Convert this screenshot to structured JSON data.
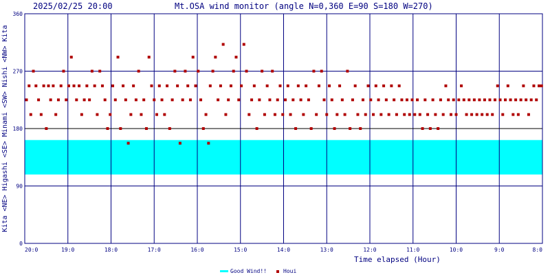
{
  "header": {
    "datetime": "2025/02/25 20:00",
    "title": "Mt.OSA wind monitor (angle N=0,360 E=90 S=180 W=270)"
  },
  "colors": {
    "background": "#ffffff",
    "grid_major": "#000080",
    "grid_minor": "#000000",
    "good_band": "#00ffff",
    "points": "#b00000",
    "text": "#000080"
  },
  "legend": [
    {
      "label": "Good Wind!!",
      "color": "#00ffff",
      "icon": "line-swatch"
    },
    {
      "label": "Houi",
      "color": "#b00000",
      "icon": "square-marker"
    }
  ],
  "chart_data": {
    "type": "scatter",
    "title": "Mt.OSA wind monitor (angle N=0,360 E=90 S=180 W=270)",
    "xlabel": "Time elapsed (Hour)",
    "ylabel": "Kita <NE> Higashi <SE> Minami <SW> Nishi <NW> Kita",
    "y_axis_text_left": [
      "Kita",
      "<NE>",
      "Higashi",
      "<SE>",
      "Minami",
      "<SW>",
      "Nishi",
      "<NW>",
      "Kita"
    ],
    "xlim": [
      0,
      12
    ],
    "ylim": [
      0,
      360
    ],
    "xticks": [
      {
        "x": 0,
        "label": "20:0"
      },
      {
        "x": 1,
        "label": "19:0"
      },
      {
        "x": 2,
        "label": "18:0"
      },
      {
        "x": 3,
        "label": "17:0"
      },
      {
        "x": 4,
        "label": "16:0"
      },
      {
        "x": 5,
        "label": "15:0"
      },
      {
        "x": 6,
        "label": "14:0"
      },
      {
        "x": 7,
        "label": "13:0"
      },
      {
        "x": 8,
        "label": "12:0"
      },
      {
        "x": 9,
        "label": "11:0"
      },
      {
        "x": 10,
        "label": "10:0"
      },
      {
        "x": 11,
        "label": "9:0"
      },
      {
        "x": 12,
        "label": "8:0"
      }
    ],
    "yticks": [
      {
        "y": 0,
        "label": "0"
      },
      {
        "y": 90,
        "label": "90"
      },
      {
        "y": 180,
        "label": "180"
      },
      {
        "y": 270,
        "label": "270"
      },
      {
        "y": 360,
        "label": "360"
      }
    ],
    "grid": true,
    "good_wind_range": [
      108,
      162
    ],
    "series": [
      {
        "name": "Houi",
        "points": [
          [
            0.04,
            225
          ],
          [
            0.1,
            247
          ],
          [
            0.14,
            202
          ],
          [
            0.2,
            270
          ],
          [
            0.26,
            247
          ],
          [
            0.32,
            225
          ],
          [
            0.38,
            202
          ],
          [
            0.44,
            247
          ],
          [
            0.5,
            180
          ],
          [
            0.55,
            247
          ],
          [
            0.6,
            225
          ],
          [
            0.66,
            247
          ],
          [
            0.72,
            202
          ],
          [
            0.78,
            225
          ],
          [
            0.84,
            247
          ],
          [
            0.9,
            270
          ],
          [
            0.96,
            225
          ],
          [
            1.02,
            247
          ],
          [
            1.08,
            292
          ],
          [
            1.14,
            247
          ],
          [
            1.2,
            225
          ],
          [
            1.26,
            247
          ],
          [
            1.32,
            202
          ],
          [
            1.38,
            225
          ],
          [
            1.44,
            247
          ],
          [
            1.5,
            225
          ],
          [
            1.56,
            270
          ],
          [
            1.62,
            247
          ],
          [
            1.68,
            202
          ],
          [
            1.74,
            270
          ],
          [
            1.8,
            247
          ],
          [
            1.86,
            225
          ],
          [
            1.92,
            180
          ],
          [
            1.98,
            202
          ],
          [
            2.04,
            247
          ],
          [
            2.1,
            225
          ],
          [
            2.16,
            292
          ],
          [
            2.22,
            180
          ],
          [
            2.28,
            247
          ],
          [
            2.34,
            225
          ],
          [
            2.4,
            157
          ],
          [
            2.46,
            202
          ],
          [
            2.52,
            247
          ],
          [
            2.58,
            225
          ],
          [
            2.64,
            270
          ],
          [
            2.7,
            202
          ],
          [
            2.76,
            225
          ],
          [
            2.82,
            180
          ],
          [
            2.88,
            292
          ],
          [
            2.94,
            247
          ],
          [
            3.0,
            225
          ],
          [
            3.06,
            202
          ],
          [
            3.12,
            247
          ],
          [
            3.18,
            225
          ],
          [
            3.24,
            202
          ],
          [
            3.3,
            247
          ],
          [
            3.36,
            180
          ],
          [
            3.42,
            225
          ],
          [
            3.48,
            270
          ],
          [
            3.54,
            247
          ],
          [
            3.6,
            157
          ],
          [
            3.66,
            225
          ],
          [
            3.72,
            270
          ],
          [
            3.78,
            247
          ],
          [
            3.84,
            225
          ],
          [
            3.9,
            292
          ],
          [
            3.96,
            247
          ],
          [
            4.02,
            270
          ],
          [
            4.08,
            225
          ],
          [
            4.14,
            180
          ],
          [
            4.2,
            202
          ],
          [
            4.26,
            157
          ],
          [
            4.3,
            247
          ],
          [
            4.36,
            270
          ],
          [
            4.42,
            292
          ],
          [
            4.48,
            225
          ],
          [
            4.54,
            247
          ],
          [
            4.6,
            312
          ],
          [
            4.66,
            202
          ],
          [
            4.72,
            225
          ],
          [
            4.78,
            247
          ],
          [
            4.84,
            270
          ],
          [
            4.9,
            292
          ],
          [
            4.96,
            225
          ],
          [
            5.02,
            247
          ],
          [
            5.08,
            312
          ],
          [
            5.14,
            270
          ],
          [
            5.2,
            202
          ],
          [
            5.26,
            225
          ],
          [
            5.32,
            247
          ],
          [
            5.38,
            180
          ],
          [
            5.44,
            225
          ],
          [
            5.5,
            270
          ],
          [
            5.56,
            202
          ],
          [
            5.62,
            247
          ],
          [
            5.68,
            225
          ],
          [
            5.74,
            270
          ],
          [
            5.8,
            202
          ],
          [
            5.86,
            225
          ],
          [
            5.92,
            247
          ],
          [
            5.98,
            202
          ],
          [
            6.04,
            225
          ],
          [
            6.1,
            247
          ],
          [
            6.16,
            202
          ],
          [
            6.22,
            225
          ],
          [
            6.28,
            180
          ],
          [
            6.34,
            247
          ],
          [
            6.4,
            225
          ],
          [
            6.46,
            202
          ],
          [
            6.52,
            247
          ],
          [
            6.58,
            225
          ],
          [
            6.64,
            180
          ],
          [
            6.7,
            270
          ],
          [
            6.76,
            202
          ],
          [
            6.82,
            247
          ],
          [
            6.88,
            270
          ],
          [
            6.94,
            225
          ],
          [
            7.0,
            202
          ],
          [
            7.06,
            247
          ],
          [
            7.12,
            225
          ],
          [
            7.18,
            180
          ],
          [
            7.24,
            202
          ],
          [
            7.3,
            247
          ],
          [
            7.36,
            225
          ],
          [
            7.42,
            202
          ],
          [
            7.48,
            270
          ],
          [
            7.54,
            180
          ],
          [
            7.6,
            225
          ],
          [
            7.66,
            247
          ],
          [
            7.72,
            202
          ],
          [
            7.78,
            180
          ],
          [
            7.84,
            225
          ],
          [
            7.9,
            202
          ],
          [
            7.96,
            247
          ],
          [
            8.02,
            225
          ],
          [
            8.08,
            202
          ],
          [
            8.14,
            247
          ],
          [
            8.2,
            225
          ],
          [
            8.26,
            202
          ],
          [
            8.32,
            247
          ],
          [
            8.38,
            225
          ],
          [
            8.44,
            202
          ],
          [
            8.5,
            247
          ],
          [
            8.56,
            225
          ],
          [
            8.62,
            202
          ],
          [
            8.68,
            247
          ],
          [
            8.74,
            225
          ],
          [
            8.8,
            202
          ],
          [
            8.86,
            225
          ],
          [
            8.92,
            202
          ],
          [
            8.98,
            225
          ],
          [
            9.04,
            202
          ],
          [
            9.1,
            225
          ],
          [
            9.16,
            202
          ],
          [
            9.22,
            180
          ],
          [
            9.28,
            225
          ],
          [
            9.34,
            202
          ],
          [
            9.4,
            180
          ],
          [
            9.46,
            225
          ],
          [
            9.52,
            202
          ],
          [
            9.58,
            180
          ],
          [
            9.64,
            225
          ],
          [
            9.7,
            202
          ],
          [
            9.76,
            247
          ],
          [
            9.82,
            225
          ],
          [
            9.88,
            202
          ],
          [
            9.94,
            225
          ],
          [
            10.0,
            202
          ],
          [
            10.06,
            225
          ],
          [
            10.12,
            247
          ],
          [
            10.18,
            225
          ],
          [
            10.24,
            202
          ],
          [
            10.3,
            225
          ],
          [
            10.36,
            202
          ],
          [
            10.42,
            225
          ],
          [
            10.48,
            202
          ],
          [
            10.54,
            225
          ],
          [
            10.6,
            202
          ],
          [
            10.66,
            225
          ],
          [
            10.72,
            202
          ],
          [
            10.78,
            225
          ],
          [
            10.84,
            202
          ],
          [
            10.9,
            225
          ],
          [
            10.96,
            247
          ],
          [
            11.02,
            225
          ],
          [
            11.08,
            202
          ],
          [
            11.14,
            225
          ],
          [
            11.2,
            247
          ],
          [
            11.26,
            225
          ],
          [
            11.32,
            202
          ],
          [
            11.38,
            225
          ],
          [
            11.44,
            202
          ],
          [
            11.5,
            225
          ],
          [
            11.56,
            247
          ],
          [
            11.62,
            225
          ],
          [
            11.68,
            202
          ],
          [
            11.74,
            225
          ],
          [
            11.8,
            247
          ],
          [
            11.86,
            225
          ],
          [
            11.92,
            247
          ],
          [
            11.98,
            247
          ]
        ]
      }
    ]
  }
}
